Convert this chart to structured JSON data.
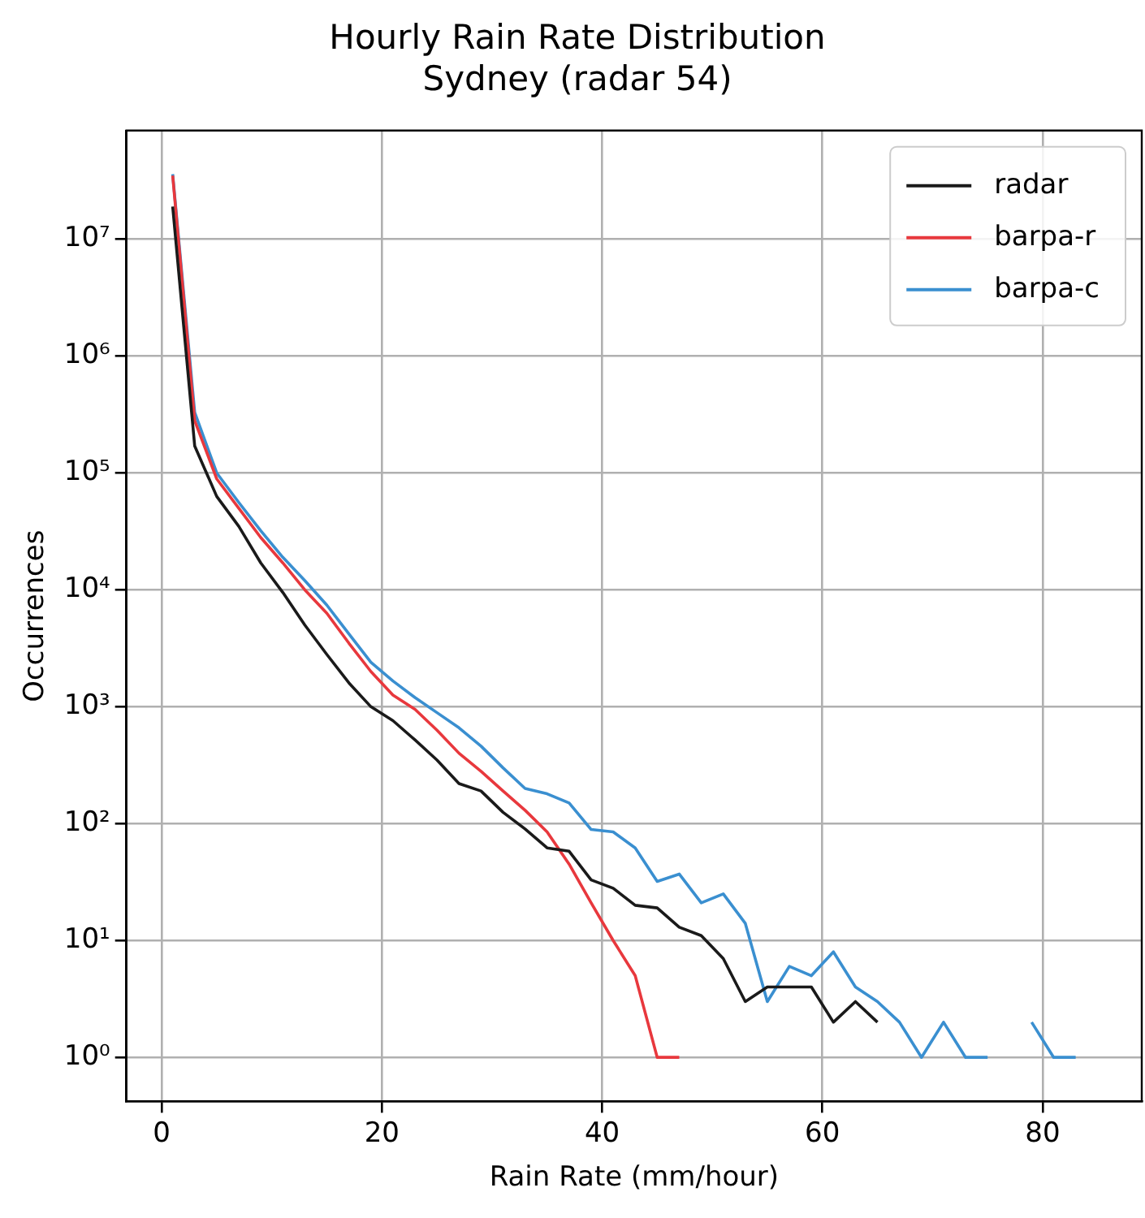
{
  "chart_data": {
    "type": "line",
    "title": "Hourly Rain Rate Distribution\nSydney (radar 54)",
    "xlabel": "Rain Rate (mm/hour)",
    "ylabel": "Occurrences",
    "x": [
      1,
      3,
      5,
      7,
      9,
      11,
      13,
      15,
      17,
      19,
      21,
      23,
      25,
      27,
      29,
      31,
      33,
      35,
      37,
      39,
      41,
      43,
      45,
      47,
      49,
      51,
      53,
      55,
      57,
      59,
      61,
      63,
      65,
      67,
      69,
      71,
      73,
      75,
      77,
      79,
      81,
      83
    ],
    "series": [
      {
        "name": "radar",
        "color": "#1a1a1a",
        "values": [
          19000000.0,
          170000.0,
          63000.0,
          35000.0,
          17000.0,
          9500,
          5000,
          2800,
          1600,
          1000,
          760,
          520,
          350,
          220,
          190,
          125,
          90,
          62,
          58,
          33,
          28,
          20,
          19,
          13,
          11,
          7,
          3,
          4,
          4,
          4,
          2,
          3,
          2,
          null,
          null,
          null,
          null,
          null,
          null,
          null,
          null,
          null
        ]
      },
      {
        "name": "barpa-r",
        "color": "#e8383d",
        "values": [
          35000000.0,
          280000.0,
          89000.0,
          50000.0,
          28000.0,
          17000.0,
          10000.0,
          6300,
          3500,
          2000,
          1260,
          950,
          630,
          400,
          280,
          190,
          130,
          85,
          45,
          21,
          10,
          5,
          1,
          1,
          null,
          null,
          null,
          null,
          null,
          null,
          null,
          null,
          null,
          null,
          null,
          null,
          null,
          null,
          null,
          null,
          null,
          null
        ]
      },
      {
        "name": "barpa-c",
        "color": "#3a8fd0",
        "values": [
          36000000.0,
          330000.0,
          100000.0,
          56000.0,
          32000.0,
          19000.0,
          12000.0,
          7400,
          4200,
          2400,
          1660,
          1200,
          890,
          660,
          460,
          300,
          200,
          180,
          150,
          89,
          85,
          62,
          32,
          37,
          21,
          25,
          14,
          3,
          6,
          5,
          8,
          4,
          3,
          2,
          1,
          2,
          1,
          1,
          null,
          2,
          1,
          1
        ]
      }
    ],
    "xlim": [
      -3.2,
      89
    ],
    "xticks": [
      0,
      20,
      40,
      60,
      80
    ],
    "ylim": [
      0.42,
      85000000.0
    ],
    "yticks": [
      {
        "value": 1,
        "label": "10⁰"
      },
      {
        "value": 10,
        "label": "10¹"
      },
      {
        "value": 100,
        "label": "10²"
      },
      {
        "value": 1000,
        "label": "10³"
      },
      {
        "value": 10000,
        "label": "10⁴"
      },
      {
        "value": 100000,
        "label": "10⁵"
      },
      {
        "value": 1000000,
        "label": "10⁶"
      },
      {
        "value": 10000000,
        "label": "10⁷"
      }
    ],
    "log": "y",
    "grid": true,
    "legend": "top right"
  }
}
